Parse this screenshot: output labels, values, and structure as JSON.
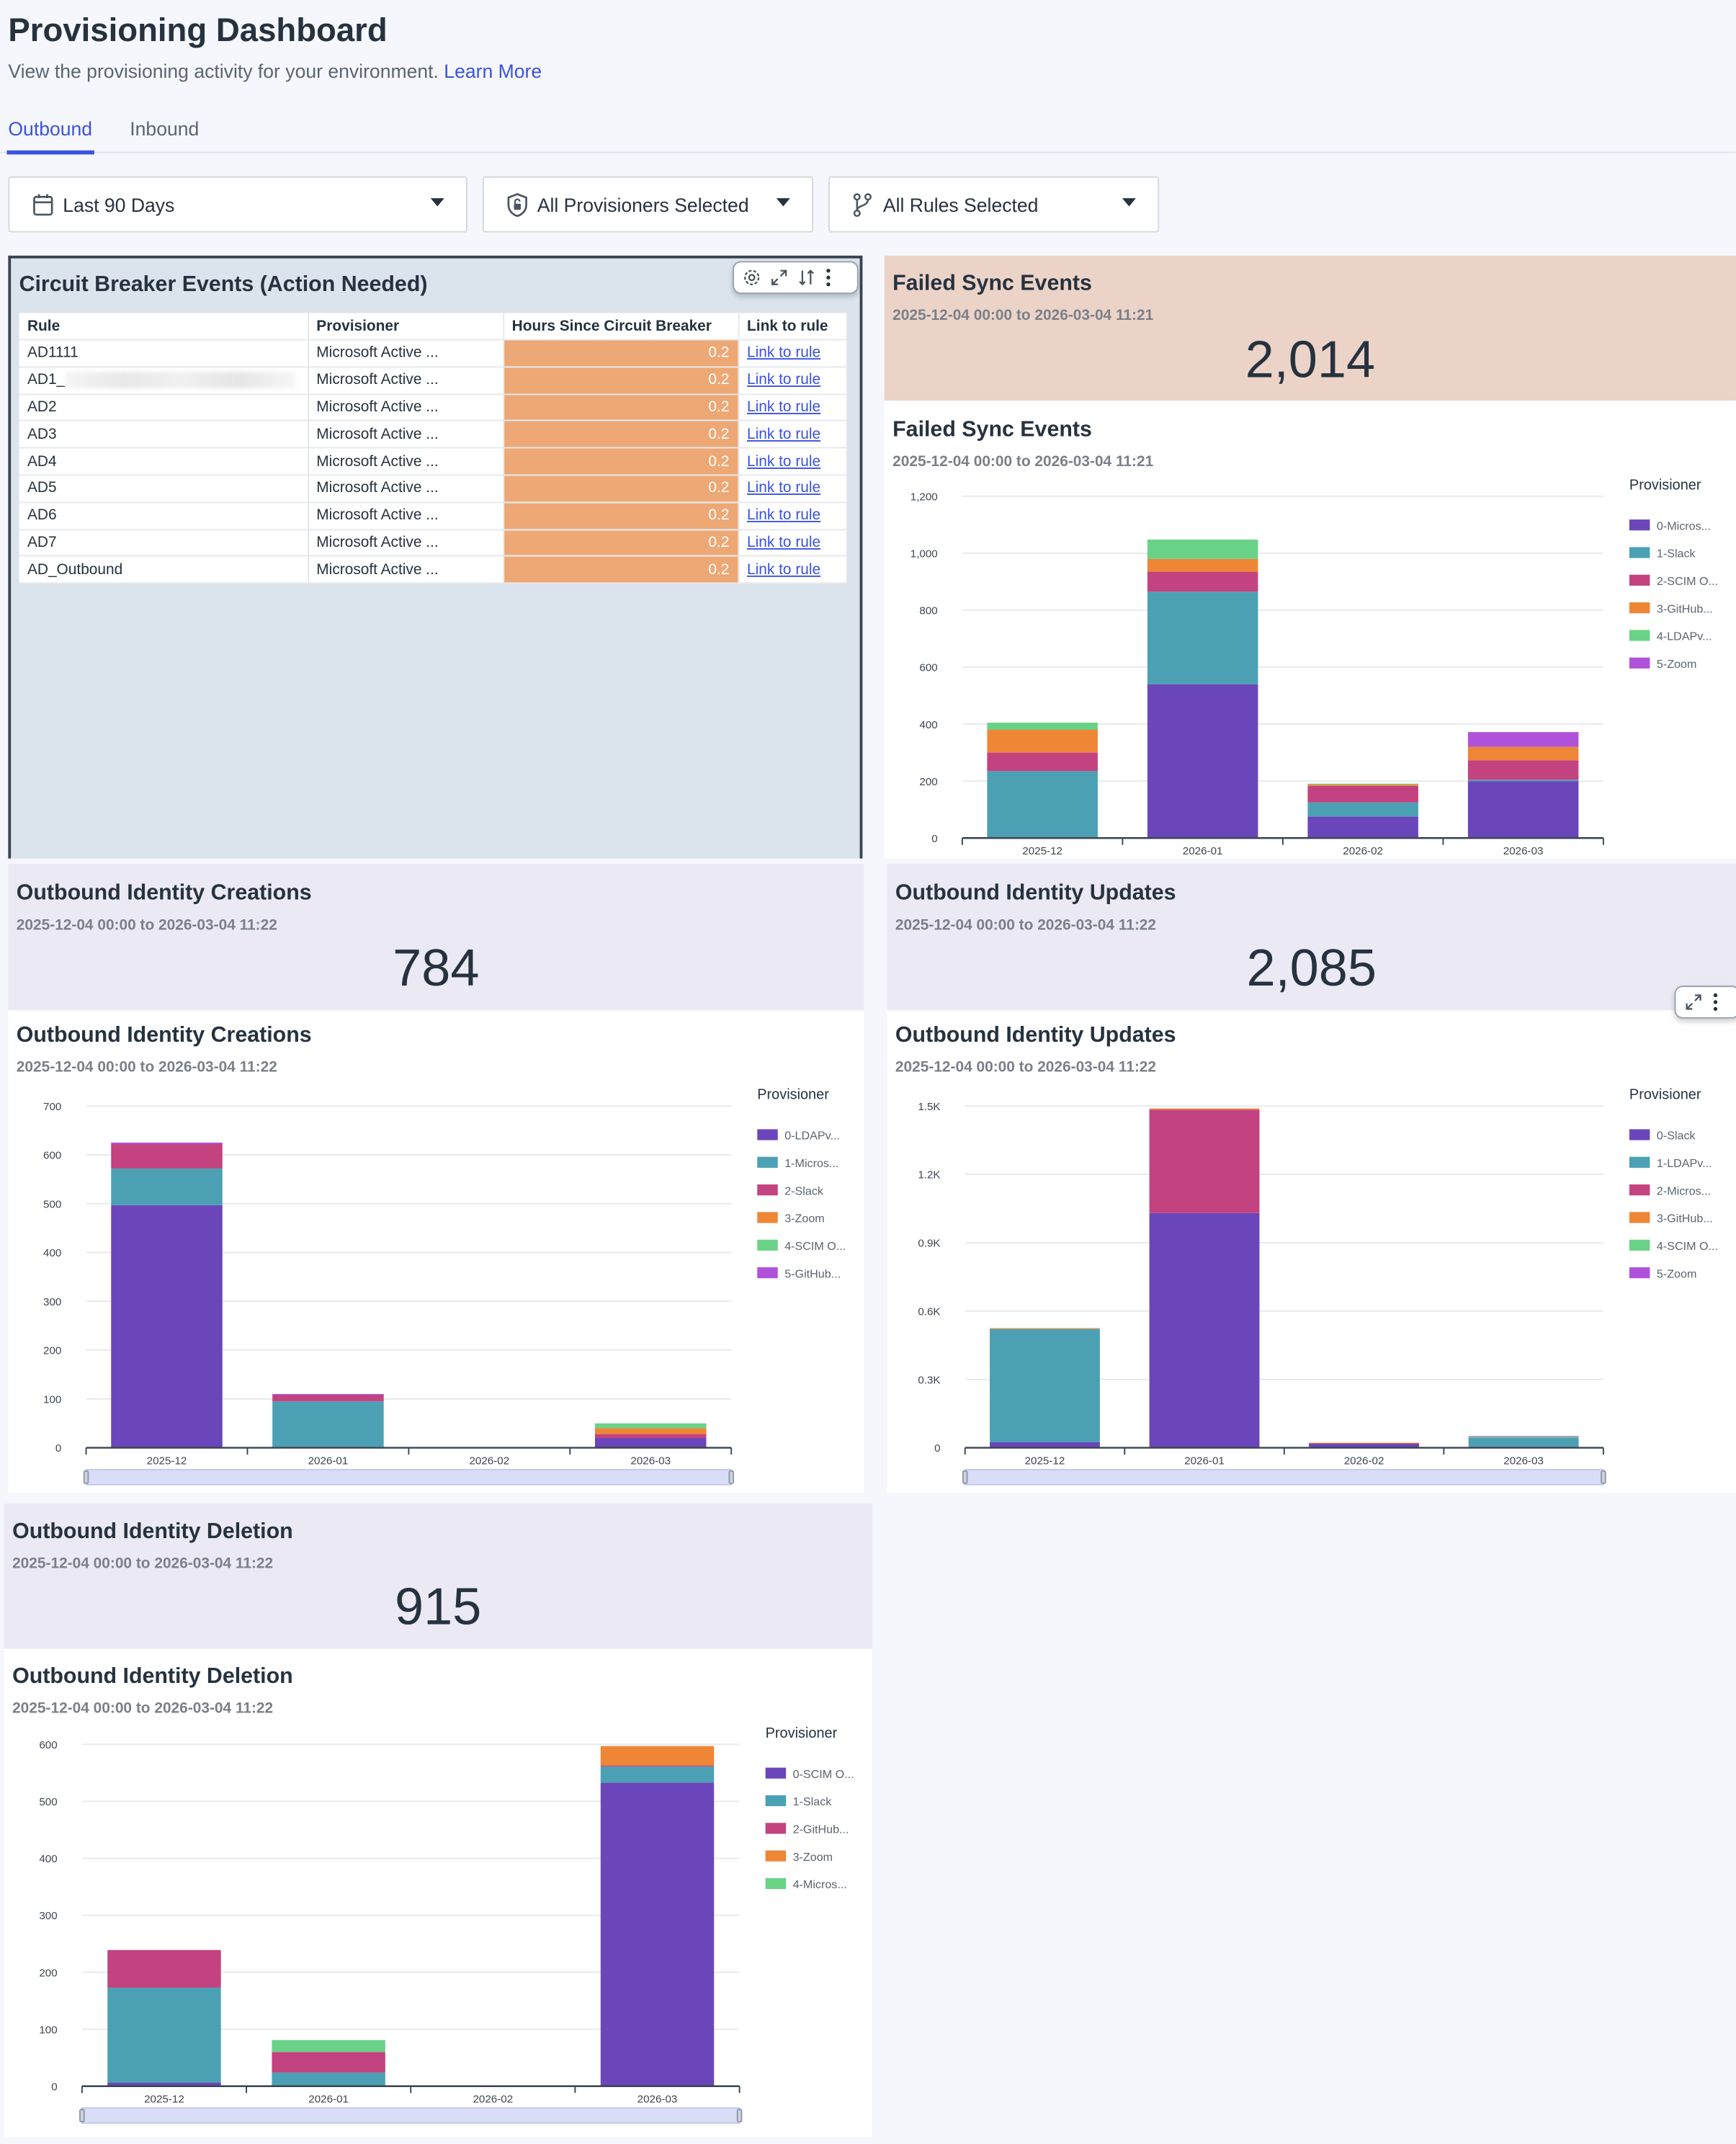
{
  "header": {
    "title": "Provisioning Dashboard",
    "subtitle": "View the provisioning activity for your environment.",
    "learn_more": "Learn More"
  },
  "tabs": [
    {
      "label": "Outbound",
      "active": true
    },
    {
      "label": "Inbound",
      "active": false
    }
  ],
  "filters": [
    {
      "label": "Last 90 Days",
      "icon": "calendar-icon"
    },
    {
      "label": "All Provisioners Selected",
      "icon": "shield-icon"
    },
    {
      "label": "All Rules Selected",
      "icon": "branch-icon"
    }
  ],
  "colors": {
    "accent": "#3b52e0",
    "hours_cell": "#eda875",
    "failed_kpi_bg": "#ecd3c8",
    "identity_kpi_bg": "#ebe9f3",
    "circuit_panel_bg": "#dbe3ec"
  },
  "circuit_breaker": {
    "title": "Circuit Breaker Events (Action Needed)",
    "columns": [
      "Rule",
      "Provisioner",
      "Hours Since Circuit Breaker",
      "Link to rule"
    ],
    "rows": [
      {
        "rule": "AD1111",
        "provisioner": "Microsoft Active ...",
        "hours": "0.2",
        "link": "Link to rule"
      },
      {
        "rule": "AD1_",
        "redacted": true,
        "provisioner": "Microsoft Active ...",
        "hours": "0.2",
        "link": "Link to rule"
      },
      {
        "rule": "AD2",
        "provisioner": "Microsoft Active ...",
        "hours": "0.2",
        "link": "Link to rule"
      },
      {
        "rule": "AD3",
        "provisioner": "Microsoft Active ...",
        "hours": "0.2",
        "link": "Link to rule"
      },
      {
        "rule": "AD4",
        "provisioner": "Microsoft Active ...",
        "hours": "0.2",
        "link": "Link to rule"
      },
      {
        "rule": "AD5",
        "provisioner": "Microsoft Active ...",
        "hours": "0.2",
        "link": "Link to rule"
      },
      {
        "rule": "AD6",
        "provisioner": "Microsoft Active ...",
        "hours": "0.2",
        "link": "Link to rule"
      },
      {
        "rule": "AD7",
        "provisioner": "Microsoft Active ...",
        "hours": "0.2",
        "link": "Link to rule"
      },
      {
        "rule": "AD_Outbound",
        "provisioner": "Microsoft Active ...",
        "hours": "0.2",
        "link": "Link to rule"
      }
    ]
  },
  "kpis": {
    "failed_sync": {
      "title": "Failed Sync Events",
      "range": "2025-12-04 00:00 to 2026-03-04 11:21",
      "value": "2,014"
    },
    "creations": {
      "title": "Outbound Identity Creations",
      "range": "2025-12-04 00:00 to 2026-03-04 11:22",
      "value": "784"
    },
    "updates": {
      "title": "Outbound Identity Updates",
      "range": "2025-12-04 00:00 to 2026-03-04 11:22",
      "value": "2,085"
    },
    "deletion": {
      "title": "Outbound Identity Deletion",
      "range": "2025-12-04 00:00 to 2026-03-04 11:22",
      "value": "915"
    }
  },
  "chart_data": [
    {
      "type": "bar",
      "stacked": true,
      "grid": true,
      "legend": "right",
      "title": "Failed Sync Events",
      "subtitle": "2025-12-04 00:00 to 2026-03-04 11:21",
      "legend_title": "Provisioner",
      "categories": [
        "2025-12",
        "2026-01",
        "2026-02",
        "2026-03"
      ],
      "ylim": [
        0,
        1200
      ],
      "yticks": [
        0,
        200,
        400,
        600,
        800,
        1000,
        1200
      ],
      "ytick_labels": [
        "0",
        "200",
        "400",
        "600",
        "800",
        "1,000",
        "1,200"
      ],
      "series": [
        {
          "name": "0-Micros...",
          "color": "#6b46ba",
          "values": [
            0,
            540,
            75,
            200
          ]
        },
        {
          "name": "1-Slack",
          "color": "#4ba0b4",
          "values": [
            235,
            325,
            50,
            5
          ]
        },
        {
          "name": "2-SCIM O...",
          "color": "#c34280",
          "values": [
            65,
            70,
            58,
            68
          ]
        },
        {
          "name": "3-GitHub...",
          "color": "#ee8636",
          "values": [
            80,
            45,
            5,
            47
          ]
        },
        {
          "name": "4-LDAPv...",
          "color": "#6ad286",
          "values": [
            25,
            68,
            3,
            0
          ]
        },
        {
          "name": "5-Zoom",
          "color": "#b052d9",
          "values": [
            0,
            0,
            0,
            52
          ]
        }
      ]
    },
    {
      "type": "bar",
      "stacked": true,
      "grid": true,
      "legend": "right",
      "title": "Outbound Identity Creations",
      "subtitle": "2025-12-04 00:00 to 2026-03-04 11:22",
      "legend_title": "Provisioner",
      "categories": [
        "2025-12",
        "2026-01",
        "2026-02",
        "2026-03"
      ],
      "ylim": [
        0,
        700
      ],
      "yticks": [
        0,
        100,
        200,
        300,
        400,
        500,
        600,
        700
      ],
      "ytick_labels": [
        "0",
        "100",
        "200",
        "300",
        "400",
        "500",
        "600",
        "700"
      ],
      "series": [
        {
          "name": "0-LDAPv...",
          "color": "#6b46ba",
          "values": [
            497,
            0,
            0,
            20
          ]
        },
        {
          "name": "1-Micros...",
          "color": "#4ba0b4",
          "values": [
            75,
            95,
            0,
            0
          ]
        },
        {
          "name": "2-Slack",
          "color": "#c34280",
          "values": [
            50,
            14,
            0,
            8
          ]
        },
        {
          "name": "3-Zoom",
          "color": "#ee8636",
          "values": [
            0,
            0,
            0,
            12
          ]
        },
        {
          "name": "4-SCIM O...",
          "color": "#6ad286",
          "values": [
            0,
            0,
            0,
            10
          ]
        },
        {
          "name": "5-GitHub...",
          "color": "#b052d9",
          "values": [
            3,
            1,
            0,
            0
          ]
        }
      ]
    },
    {
      "type": "bar",
      "stacked": true,
      "grid": true,
      "legend": "right",
      "title": "Outbound Identity Updates",
      "subtitle": "2025-12-04 00:00 to 2026-03-04 11:22",
      "legend_title": "Provisioner",
      "categories": [
        "2025-12",
        "2026-01",
        "2026-02",
        "2026-03"
      ],
      "ylim": [
        0,
        1500
      ],
      "yticks": [
        0,
        300,
        600,
        900,
        1200,
        1500
      ],
      "ytick_labels": [
        "0",
        "0.3K",
        "0.6K",
        "0.9K",
        "1.2K",
        "1.5K"
      ],
      "series": [
        {
          "name": "0-Slack",
          "color": "#6b46ba",
          "values": [
            24,
            1030,
            20,
            3
          ]
        },
        {
          "name": "1-LDAPv...",
          "color": "#4ba0b4",
          "values": [
            497,
            0,
            0,
            40
          ]
        },
        {
          "name": "2-Micros...",
          "color": "#c34280",
          "values": [
            0,
            454,
            0,
            0
          ]
        },
        {
          "name": "3-GitHub...",
          "color": "#ee8636",
          "values": [
            4,
            5,
            2,
            0
          ]
        },
        {
          "name": "4-SCIM O...",
          "color": "#6ad286",
          "values": [
            0,
            0,
            0,
            5
          ]
        },
        {
          "name": "5-Zoom",
          "color": "#b052d9",
          "values": [
            0,
            0,
            0,
            3
          ]
        }
      ]
    },
    {
      "type": "bar",
      "stacked": true,
      "grid": true,
      "legend": "right",
      "title": "Outbound Identity Deletion",
      "subtitle": "2025-12-04 00:00 to 2026-03-04 11:22",
      "legend_title": "Provisioner",
      "categories": [
        "2025-12",
        "2026-01",
        "2026-02",
        "2026-03"
      ],
      "ylim": [
        0,
        600
      ],
      "yticks": [
        0,
        100,
        200,
        300,
        400,
        500,
        600
      ],
      "ytick_labels": [
        "0",
        "100",
        "200",
        "300",
        "400",
        "500",
        "600"
      ],
      "series": [
        {
          "name": "0-SCIM O...",
          "color": "#6b46ba",
          "values": [
            6,
            0,
            0,
            533
          ]
        },
        {
          "name": "1-Slack",
          "color": "#4ba0b4",
          "values": [
            167,
            24,
            0,
            28
          ]
        },
        {
          "name": "2-GitHub...",
          "color": "#c34280",
          "values": [
            66,
            36,
            0,
            2
          ]
        },
        {
          "name": "3-Zoom",
          "color": "#ee8636",
          "values": [
            0,
            0,
            0,
            34
          ]
        },
        {
          "name": "4-Micros...",
          "color": "#6ad286",
          "values": [
            0,
            21,
            0,
            0
          ]
        }
      ]
    }
  ]
}
